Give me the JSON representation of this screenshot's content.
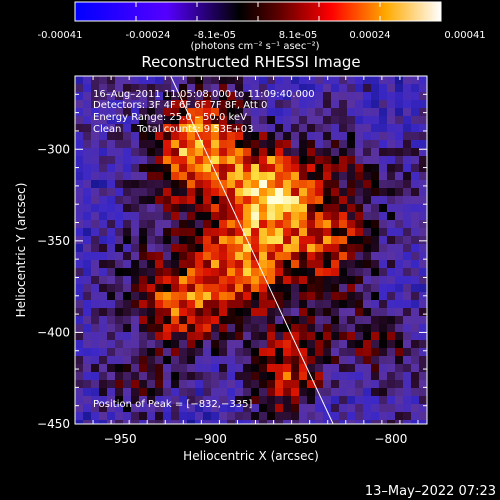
{
  "colorbar": {
    "tick_labels": [
      "-0.00041",
      "-0.00024",
      "-8.1e-05",
      "8.1e-05",
      "0.00024",
      "0.00041"
    ],
    "unit_label": "(photons cm⁻² s⁻¹ asec⁻²)",
    "range": [
      -0.00041,
      0.00041
    ]
  },
  "chart_data": {
    "type": "heatmap",
    "title": "Reconstructed RHESSI Image",
    "xlabel": "Heliocentric X (arcsec)",
    "ylabel": "Heliocentric Y (arcsec)",
    "xlim": [
      -975,
      -780
    ],
    "ylim": [
      -450,
      -260
    ],
    "x_ticks": [
      -950,
      -900,
      -850,
      -800
    ],
    "y_ticks": [
      -300,
      -350,
      -400,
      -450
    ],
    "x_tick_labels": [
      "−950",
      "−900",
      "−850",
      "−800"
    ],
    "y_tick_labels": [
      "−300",
      "−350",
      "−400",
      "−450"
    ],
    "limb_line": [
      [
        -922,
        -260
      ],
      [
        -832,
        -450
      ]
    ],
    "peak": {
      "x": -832,
      "y": -335
    },
    "colors": {
      "min": "#0000ff",
      "mid": "#000000",
      "max": "#ffffff"
    }
  },
  "annotations": {
    "time_range": "16–Aug–2011 11:05:08.000 to 11:09:40.000",
    "detectors": "Detectors: 3F 4F 6F 6F 7F 8F, Att 0",
    "energy": "Energy Range: 25.0 – 50.0 keV",
    "clean": "Clean     Total counts: 9.53E+03",
    "peak_label": "Position of Peak = [−832,−335]"
  },
  "footer": {
    "date": "13–May–2022 07:23"
  }
}
